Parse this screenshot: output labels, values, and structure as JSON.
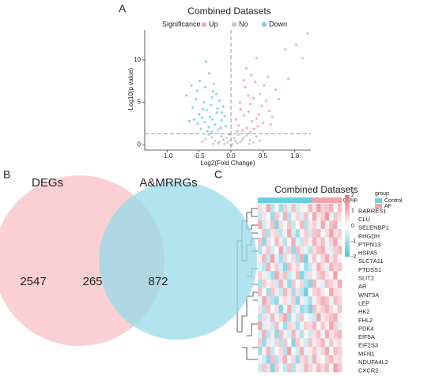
{
  "chart_data": [
    {
      "type": "scatter",
      "panel": "A",
      "title": "Combined Datasets",
      "legend_title": "Significance",
      "xlabel": "Log2(Fold Change)",
      "ylabel": "-Log10(p value)",
      "xlim": [
        -1.35,
        1.25
      ],
      "ylim": [
        -0.6,
        13.5
      ],
      "xticks": [
        {
          "value": -1,
          "label": "-1.0"
        },
        {
          "value": -0.5,
          "label": "-0.5"
        },
        {
          "value": 0,
          "label": "0.0"
        },
        {
          "value": 0.5,
          "label": "0.5"
        },
        {
          "value": 1,
          "label": "1.0"
        }
      ],
      "yticks": [
        0,
        5,
        10
      ],
      "vline": 0,
      "hline": 1.3,
      "series": [
        {
          "name": "Up",
          "color": "#f4a5ae",
          "x": [
            0.12,
            0.2,
            0.3,
            0.25,
            0.4,
            0.35,
            0.15,
            0.45,
            0.5,
            0.22,
            0.6,
            0.38,
            0.28,
            0.55,
            0.18,
            0.42,
            0.32,
            0.65,
            0.08,
            0.48,
            0.27,
            0.7,
            0.36,
            0.58,
            0.24,
            0.44,
            0.14,
            0.52,
            0.33,
            0.62,
            0.75,
            0.2,
            0.4,
            0.85,
            1.02,
            1.12,
            1.2,
            0.9,
            0.3,
            0.1
          ],
          "values": [
            2.3,
            3.5,
            4.8,
            2.0,
            3.1,
            5.5,
            4.2,
            6.0,
            2.6,
            6.8,
            4.0,
            7.4,
            3.9,
            5.2,
            1.7,
            2.2,
            8.2,
            3.3,
            3.0,
            4.6,
            5.8,
            6.5,
            1.9,
            8.0,
            9.0,
            3.6,
            5.0,
            7.0,
            2.8,
            2.4,
            5.4,
            7.6,
            10.2,
            11.2,
            11.8,
            10.2,
            13.1,
            7.8,
            1.5,
            1.6
          ]
        },
        {
          "name": "No",
          "color": "#c8c8c8",
          "x": [
            -0.25,
            -0.15,
            -0.05,
            0.05,
            0.15,
            0.25,
            -0.3,
            0.3,
            -0.1,
            0.1,
            -0.2,
            0.2,
            0.0,
            -0.35,
            0.35,
            -0.02,
            0.02,
            -0.4,
            0.4,
            -0.12,
            0.12,
            -0.28,
            0.28,
            0.07,
            -0.07,
            0.18,
            -0.18,
            -0.45,
            0.45,
            0.0
          ],
          "values": [
            0.5,
            1.0,
            0.3,
            0.8,
            0.4,
            1.1,
            0.9,
            0.6,
            0.1,
            0.2,
            0.2,
            0.9,
            0.6,
            1.2,
            0.3,
            1.2,
            0.05,
            0.7,
            1.0,
            0.6,
            1.2,
            0.15,
            0.1,
            0.45,
            0.85,
            0.65,
            0.35,
            0.4,
            0.5,
            0.0
          ]
        },
        {
          "name": "Down",
          "color": "#7fcfe3",
          "x": [
            -0.45,
            -0.38,
            -0.52,
            -0.3,
            -0.22,
            -0.6,
            -0.35,
            -0.15,
            -0.28,
            -0.42,
            -0.5,
            -0.2,
            -0.33,
            -0.12,
            -0.47,
            -0.25,
            -0.4,
            -0.55,
            -0.18,
            -0.31,
            -0.08,
            -0.65,
            -0.37,
            -0.27,
            -0.44,
            -0.58,
            -0.1,
            -0.23,
            -0.49,
            -0.34,
            -0.7,
            -0.16,
            -0.29,
            -0.41,
            -0.53,
            -0.21,
            -0.39,
            -0.62,
            -0.14,
            -0.3
          ],
          "values": [
            3.2,
            4.1,
            2.5,
            5.6,
            3.8,
            4.4,
            2.1,
            2.9,
            6.3,
            5.0,
            3.6,
            1.8,
            3.3,
            4.5,
            1.9,
            2.4,
            6.8,
            5.4,
            5.2,
            4.7,
            2.2,
            2.8,
            1.6,
            7.2,
            4.2,
            3.0,
            3.4,
            6.0,
            7.5,
            8.4,
            5.8,
            2.0,
            3.0,
            2.7,
            6.4,
            4.3,
            9.8,
            7.0,
            3.8,
            1.5
          ]
        }
      ]
    },
    {
      "type": "venn",
      "panel": "B",
      "sets": [
        {
          "name": "DEGs",
          "color": "#f9c0c3"
        },
        {
          "name": "A&MRRGs",
          "color": "#97dbe9"
        }
      ],
      "values": [
        2547,
        265,
        872
      ]
    },
    {
      "type": "heatmap",
      "panel": "C",
      "title": "Combined Datasets",
      "group_label": "group",
      "legend_title": "group",
      "groups": [
        {
          "name": "Control",
          "color": "#6ccde0"
        },
        {
          "name": "AF",
          "color": "#f3a3ab"
        }
      ],
      "column_group": [
        0,
        0,
        0,
        0,
        0,
        0,
        0,
        0,
        0,
        0,
        0,
        0,
        0,
        1,
        1,
        1,
        1,
        1,
        1,
        1
      ],
      "clim": [
        -2,
        2
      ],
      "cticks": [
        2,
        1,
        0,
        -1,
        -2
      ],
      "rows": [
        "RARRES1",
        "CLU",
        "SELENBP1",
        "PHGDH",
        "PTPN13",
        "HSPA5",
        "SLC7A11",
        "PTDSS1",
        "SLIT2",
        "AR",
        "WNT5A",
        "LEP",
        "HK2",
        "FHL2",
        "PDK4",
        "EIF5A",
        "EIF2S3",
        "MFN1",
        "NDUFA4L2",
        "CXCR2"
      ],
      "values": [
        [
          0.5,
          -0.3,
          1.2,
          -0.8,
          0.2,
          -1.1,
          0.7,
          -0.4,
          0.9,
          -0.6,
          0.3,
          -0.2,
          1.0,
          0.4,
          1.3,
          0.6,
          0.8,
          1.1,
          -0.1,
          0.9
        ],
        [
          -0.7,
          0.4,
          0.1,
          -1.2,
          0.8,
          -0.3,
          1.1,
          -0.9,
          0.2,
          0.6,
          -0.5,
          0.9,
          -0.2,
          1.2,
          0.3,
          0.7,
          1.4,
          -0.4,
          0.8,
          0.5
        ],
        [
          1.1,
          -0.6,
          0.3,
          0.9,
          -1.4,
          0.5,
          -0.2,
          0.8,
          -0.7,
          0.1,
          1.0,
          -0.9,
          0.4,
          0.6,
          -0.3,
          1.2,
          0.2,
          0.9,
          1.1,
          -0.2
        ],
        [
          -0.2,
          0.9,
          -1.0,
          0.4,
          0.6,
          -0.8,
          0.3,
          1.2,
          -0.5,
          -1.1,
          0.2,
          0.7,
          -0.6,
          0.8,
          1.0,
          -0.1,
          0.5,
          1.3,
          0.4,
          0.7
        ],
        [
          0.8,
          -1.3,
          0.5,
          -0.2,
          1.0,
          0.3,
          -0.9,
          0.1,
          1.1,
          -0.4,
          -0.7,
          0.6,
          0.2,
          1.1,
          0.4,
          0.9,
          -0.2,
          0.6,
          1.2,
          0.3
        ],
        [
          -0.9,
          0.2,
          0.8,
          -0.5,
          -0.1,
          1.2,
          -0.6,
          0.7,
          -1.2,
          0.9,
          0.4,
          -0.3,
          -0.8,
          0.5,
          0.9,
          1.1,
          0.3,
          -0.4,
          0.7,
          1.0
        ],
        [
          0.3,
          1.0,
          -0.7,
          1.3,
          -0.4,
          -1.0,
          0.6,
          -0.2,
          0.5,
          -0.9,
          1.1,
          -1.5,
          0.2,
          0.8,
          -0.2,
          0.6,
          1.2,
          0.4,
          0.9,
          0.2
        ],
        [
          -0.4,
          -0.8,
          1.1,
          0.2,
          0.7,
          -0.5,
          -1.3,
          0.9,
          0.3,
          0.6,
          -0.2,
          -1.1,
          -0.7,
          0.3,
          1.1,
          0.5,
          -0.3,
          1.0,
          0.6,
          0.8
        ],
        [
          0.6,
          0.3,
          -0.5,
          -1.1,
          1.2,
          0.4,
          0.9,
          -0.7,
          -0.3,
          1.0,
          -1.4,
          -0.6,
          0.5,
          -0.2,
          0.7,
          1.0,
          0.4,
          0.2,
          1.3,
          -0.1
        ],
        [
          -1.0,
          0.7,
          0.2,
          0.5,
          -0.6,
          1.1,
          -0.3,
          -1.2,
          0.8,
          -0.1,
          0.6,
          -0.9,
          -1.3,
          1.0,
          0.2,
          -0.4,
          0.9,
          0.6,
          0.3,
          1.1
        ],
        [
          0.9,
          -0.2,
          -1.1,
          0.8,
          0.3,
          -0.7,
          1.0,
          0.4,
          -1.0,
          0.5,
          -0.8,
          -1.6,
          0.1,
          0.6,
          0.9,
          0.3,
          -0.1,
          1.2,
          0.5,
          0.4
        ],
        [
          -0.3,
          1.2,
          0.6,
          -0.9,
          -1.2,
          0.2,
          0.5,
          -0.4,
          0.7,
          -1.3,
          0.3,
          -0.5,
          -1.0,
          0.2,
          0.6,
          1.1,
          0.8,
          -0.3,
          0.9,
          0.6
        ],
        [
          0.4,
          -0.9,
          0.9,
          0.1,
          0.5,
          -1.4,
          -0.2,
          1.1,
          -0.6,
          0.3,
          -1.1,
          -0.8,
          -1.5,
          0.9,
          0.4,
          0.7,
          1.0,
          0.5,
          -0.2,
          0.8
        ],
        [
          -0.8,
          0.5,
          -0.4,
          1.0,
          -0.3,
          0.6,
          1.2,
          -1.0,
          0.2,
          -0.7,
          0.8,
          0.1,
          -0.4,
          -0.6,
          1.2,
          0.3,
          0.6,
          0.9,
          1.1,
          0.2
        ],
        [
          1.2,
          -0.4,
          0.3,
          -0.6,
          0.9,
          -0.2,
          -1.1,
          0.6,
          0.4,
          -1.0,
          -0.3,
          0.7,
          0.5,
          1.0,
          -0.1,
          0.8,
          0.3,
          1.2,
          0.6,
          -0.4
        ],
        [
          -0.5,
          1.1,
          -0.8,
          0.3,
          -1.3,
          0.9,
          0.2,
          -0.5,
          1.0,
          0.4,
          -0.9,
          0.2,
          -0.6,
          0.5,
          0.9,
          -0.2,
          1.1,
          0.4,
          0.7,
          1.0
        ],
        [
          0.7,
          -1.2,
          0.4,
          -0.3,
          0.6,
          -0.9,
          0.8,
          0.1,
          -1.4,
          0.7,
          0.2,
          -0.6,
          0.9,
          0.3,
          0.6,
          1.0,
          -0.3,
          0.8,
          0.2,
          0.5
        ],
        [
          -1.1,
          0.3,
          1.0,
          -0.7,
          0.1,
          0.5,
          -0.8,
          1.3,
          -0.2,
          -0.6,
          1.1,
          -0.3,
          0.3,
          0.8,
          -0.4,
          0.6,
          1.2,
          0.1,
          0.9,
          0.7
        ],
        [
          0.2,
          -0.6,
          -1.3,
          0.9,
          -0.9,
          0.4,
          1.1,
          -0.3,
          0.6,
          -1.2,
          0.5,
          0.8,
          -0.5,
          1.1,
          0.3,
          -0.1,
          0.7,
          1.0,
          0.4,
          0.6
        ],
        [
          -0.6,
          0.8,
          0.5,
          -1.4,
          0.7,
          -0.2,
          -0.7,
          0.9,
          -0.9,
          0.3,
          -0.4,
          1.0,
          0.6,
          0.2,
          1.0,
          0.5,
          0.9,
          -0.2,
          1.3,
          0.8
        ]
      ]
    }
  ]
}
